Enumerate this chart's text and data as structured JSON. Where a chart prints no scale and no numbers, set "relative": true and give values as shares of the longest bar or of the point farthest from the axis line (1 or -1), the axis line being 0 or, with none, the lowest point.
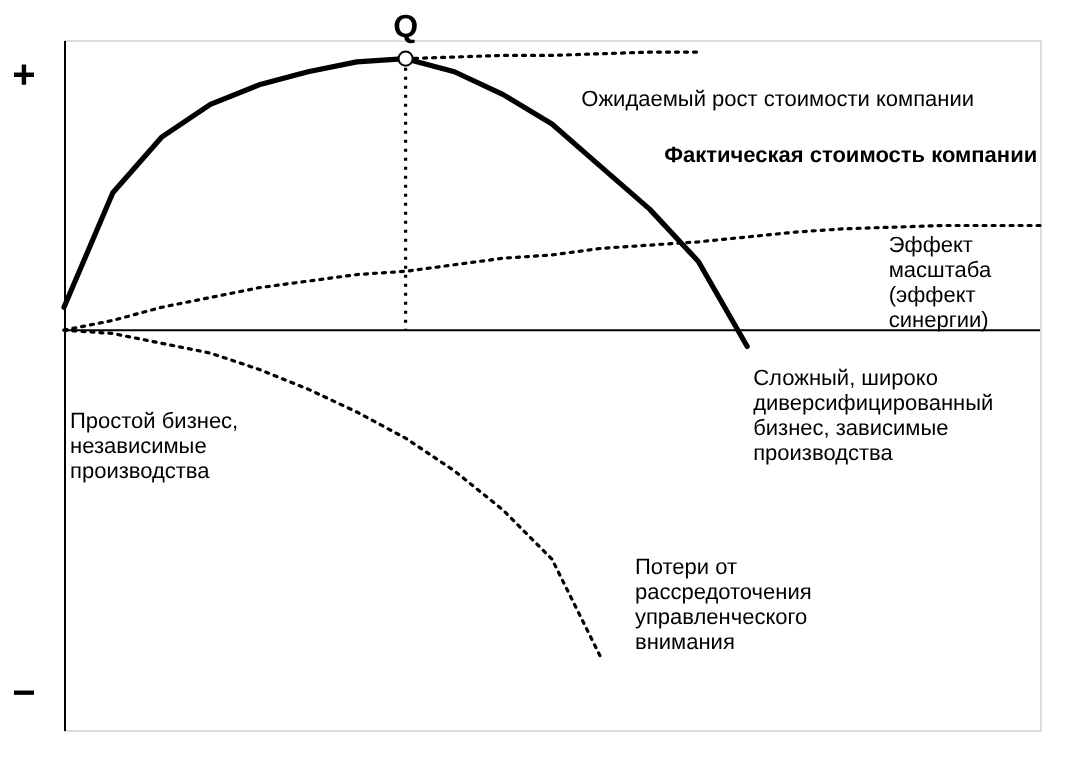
{
  "chart_data": {
    "type": "line",
    "relative": true,
    "grid": false,
    "categories": [
      null,
      null,
      null,
      null,
      null,
      null,
      null,
      null,
      null,
      null,
      null,
      null,
      null,
      null,
      null,
      null,
      null,
      null,
      null,
      null,
      null
    ],
    "series": [
      {
        "name": "Фактическая стоимость компании",
        "color": "#000000",
        "line_style": "solid",
        "values": [
          0.07,
          0.42,
          0.59,
          0.69,
          0.75,
          0.79,
          0.82,
          0.83,
          0.79,
          0.72,
          0.63,
          0.5,
          0.37,
          0.21,
          -0.05,
          null,
          null,
          null,
          null,
          null,
          null
        ]
      },
      {
        "name": "Ожидаемый рост стоимости компании",
        "color": "#000000",
        "line_style": "dotted",
        "values": [
          null,
          null,
          null,
          null,
          null,
          null,
          null,
          0.83,
          0.835,
          0.84,
          0.84,
          0.845,
          0.85,
          0.85,
          null,
          null,
          null,
          null,
          null,
          null,
          null
        ]
      },
      {
        "name": "Эффект\nмасштаба\n(эффект\nсинергии)",
        "color": "#000000",
        "line_style": "dotted",
        "values": [
          0,
          0.03,
          0.07,
          0.1,
          0.13,
          0.15,
          0.17,
          0.18,
          0.2,
          0.22,
          0.23,
          0.25,
          0.26,
          0.27,
          0.285,
          0.3,
          0.31,
          0.315,
          0.32,
          0.32,
          0.32
        ]
      },
      {
        "name": "Потери от\nрассредоточения\nуправленческого\nвнимания",
        "color": "#000000",
        "line_style": "dotted",
        "values": [
          0,
          -0.01,
          -0.04,
          -0.07,
          -0.12,
          -0.18,
          -0.25,
          -0.33,
          -0.43,
          -0.55,
          -0.7,
          -1,
          null,
          null,
          null,
          null,
          null,
          null,
          null,
          null,
          null
        ]
      }
    ],
    "annotations": [
      "+",
      "−",
      {
        "text": "Q",
        "y": 0.83
      },
      "Простой бизнес,\nнезависимые\nпроизводства",
      "Сложный, широко\nдиверсифицированный\nбизнес, зависимые\nпроизводства"
    ]
  }
}
